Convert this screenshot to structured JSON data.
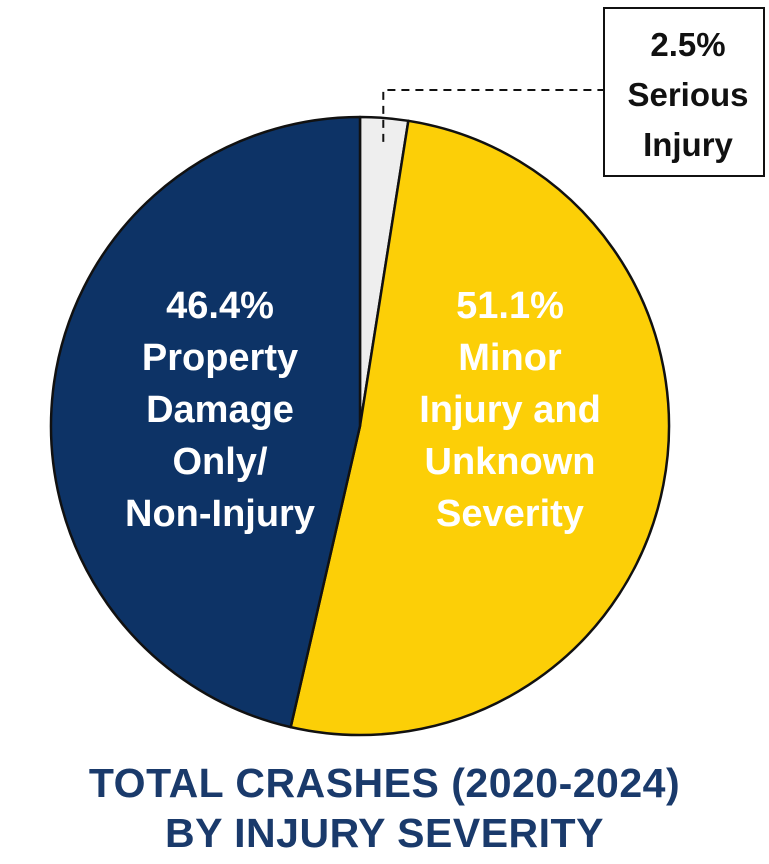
{
  "chart_data": {
    "type": "pie",
    "slices": [
      {
        "label_lines": [
          "2.5%",
          "Serious",
          "Injury"
        ],
        "value": 2.5,
        "color": "#eeeeee",
        "label_color": "#111111"
      },
      {
        "label_lines": [
          "51.1%",
          "Minor",
          "Injury and",
          "Unknown",
          "Severity"
        ],
        "value": 51.1,
        "color": "#fccf07",
        "label_color": "#ffffff"
      },
      {
        "label_lines": [
          "46.4%",
          "Property",
          "Damage",
          "Only/",
          "Non-Injury"
        ],
        "value": 46.4,
        "color": "#0d3366",
        "label_color": "#ffffff"
      }
    ],
    "title_lines": [
      "TOTAL CRASHES (2020-2024)",
      "BY INJURY SEVERITY"
    ],
    "title_color": "#1a3a6b",
    "start_angle_deg": 0,
    "direction": "clockwise",
    "callout_slice": "2.5%"
  }
}
